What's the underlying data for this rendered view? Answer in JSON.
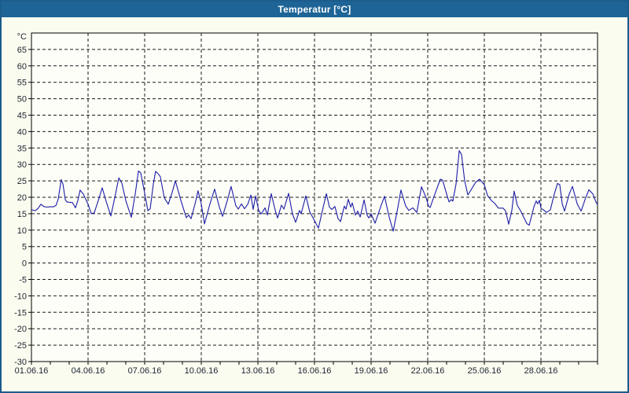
{
  "window": {
    "title": "Temperatur [°C]"
  },
  "colors": {
    "titlebar": "#1e6496",
    "window_border": "#1b5c8c",
    "background": "#fbfcf0",
    "plot_background": "#fdfef8",
    "grid": "#1a1a1a",
    "axis": "#000000",
    "line": "#1c1ca8",
    "label_text": "#1c2430"
  },
  "chart_data": {
    "type": "line",
    "title": "Temperatur [°C]",
    "xlabel": "",
    "ylabel": "°C",
    "grid": "dashed",
    "legend": "none",
    "ylim": [
      -30,
      70
    ],
    "xlim_days": [
      0,
      30
    ],
    "y_unit_label": {
      "v": 70,
      "label": "°C"
    },
    "y_ticks": [
      {
        "v": 65,
        "label": "65"
      },
      {
        "v": 60,
        "label": "60"
      },
      {
        "v": 55,
        "label": "55"
      },
      {
        "v": 50,
        "label": "50"
      },
      {
        "v": 45,
        "label": "45"
      },
      {
        "v": 40,
        "label": "40"
      },
      {
        "v": 35,
        "label": "35"
      },
      {
        "v": 30,
        "label": "30"
      },
      {
        "v": 25,
        "label": "25"
      },
      {
        "v": 20,
        "label": "20"
      },
      {
        "v": 15,
        "label": "15"
      },
      {
        "v": 10,
        "label": "10"
      },
      {
        "v": 5,
        "label": "5"
      },
      {
        "v": 0,
        "label": "0"
      },
      {
        "v": -5,
        "label": "-5"
      },
      {
        "v": -10,
        "label": "-10"
      },
      {
        "v": -15,
        "label": "-15"
      },
      {
        "v": -20,
        "label": "-20"
      },
      {
        "v": -25,
        "label": "-25"
      },
      {
        "v": -30,
        "label": "-30"
      }
    ],
    "x_ticks": [
      {
        "day": 0,
        "label": "01.06.16"
      },
      {
        "day": 3,
        "label": "04.06.16"
      },
      {
        "day": 6,
        "label": "07.06.16"
      },
      {
        "day": 9,
        "label": "10.06.16"
      },
      {
        "day": 12,
        "label": "13.06.16"
      },
      {
        "day": 15,
        "label": "16.06.16"
      },
      {
        "day": 18,
        "label": "19.06.16"
      },
      {
        "day": 21,
        "label": "22.06.16"
      },
      {
        "day": 24,
        "label": "25.06.16"
      },
      {
        "day": 27,
        "label": "28.06.16"
      }
    ],
    "x_minor_tick_every_days": 1,
    "x_major_grid_every_days": 3,
    "y_grid_every": 5,
    "series": [
      {
        "name": "Temperatur",
        "unit": "°C",
        "x_unit": "days since 01.06.16 00:00",
        "points": [
          [
            0,
            16.2
          ],
          [
            0.2,
            15.9
          ],
          [
            0.35,
            16.6
          ],
          [
            0.5,
            17.9
          ],
          [
            0.65,
            17.2
          ],
          [
            0.8,
            17.0
          ],
          [
            1.0,
            17.1
          ],
          [
            1.17,
            17.1
          ],
          [
            1.3,
            17.5
          ],
          [
            1.42,
            19.5
          ],
          [
            1.58,
            25.4
          ],
          [
            1.67,
            24.0
          ],
          [
            1.79,
            19.3
          ],
          [
            1.88,
            18.6
          ],
          [
            2.0,
            18.5
          ],
          [
            2.17,
            18.4
          ],
          [
            2.33,
            16.8
          ],
          [
            2.46,
            19.0
          ],
          [
            2.58,
            22.2
          ],
          [
            2.67,
            21.5
          ],
          [
            2.75,
            21.0
          ],
          [
            2.92,
            18.8
          ],
          [
            3.0,
            17.9
          ],
          [
            3.17,
            15.0
          ],
          [
            3.33,
            15.3
          ],
          [
            3.54,
            19.0
          ],
          [
            3.75,
            22.9
          ],
          [
            3.92,
            19.5
          ],
          [
            4.0,
            18.0
          ],
          [
            4.21,
            14.3
          ],
          [
            4.42,
            20.0
          ],
          [
            4.63,
            25.9
          ],
          [
            4.79,
            24.3
          ],
          [
            5.0,
            19.0
          ],
          [
            5.29,
            13.9
          ],
          [
            5.5,
            21.0
          ],
          [
            5.67,
            28.0
          ],
          [
            5.79,
            27.4
          ],
          [
            6.0,
            21.3
          ],
          [
            6.17,
            15.9
          ],
          [
            6.29,
            16.5
          ],
          [
            6.46,
            24.0
          ],
          [
            6.58,
            27.9
          ],
          [
            6.71,
            27.2
          ],
          [
            6.83,
            26.3
          ],
          [
            7.04,
            19.8
          ],
          [
            7.25,
            17.9
          ],
          [
            7.46,
            21.5
          ],
          [
            7.63,
            25.0
          ],
          [
            7.92,
            19.0
          ],
          [
            8.21,
            13.8
          ],
          [
            8.33,
            14.6
          ],
          [
            8.46,
            13.5
          ],
          [
            8.67,
            18.0
          ],
          [
            8.83,
            22.0
          ],
          [
            9.0,
            18.0
          ],
          [
            9.17,
            11.9
          ],
          [
            9.46,
            18.0
          ],
          [
            9.71,
            22.5
          ],
          [
            9.96,
            17.0
          ],
          [
            10.13,
            14.2
          ],
          [
            10.38,
            19.0
          ],
          [
            10.58,
            23.3
          ],
          [
            10.83,
            17.5
          ],
          [
            10.96,
            16.4
          ],
          [
            11.13,
            18.0
          ],
          [
            11.29,
            16.5
          ],
          [
            11.46,
            17.8
          ],
          [
            11.63,
            20.7
          ],
          [
            11.75,
            16.3
          ],
          [
            11.88,
            20.4
          ],
          [
            12.04,
            16.0
          ],
          [
            12.17,
            14.9
          ],
          [
            12.38,
            16.8
          ],
          [
            12.5,
            14.6
          ],
          [
            12.71,
            21.1
          ],
          [
            12.92,
            16.0
          ],
          [
            13.04,
            13.7
          ],
          [
            13.25,
            17.6
          ],
          [
            13.38,
            16.4
          ],
          [
            13.63,
            21.2
          ],
          [
            13.83,
            15.0
          ],
          [
            14.0,
            12.4
          ],
          [
            14.21,
            16.0
          ],
          [
            14.29,
            15.0
          ],
          [
            14.54,
            20.4
          ],
          [
            14.75,
            15.5
          ],
          [
            14.88,
            14.2
          ],
          [
            15.21,
            10.6
          ],
          [
            15.42,
            16.0
          ],
          [
            15.63,
            21.1
          ],
          [
            15.79,
            17.0
          ],
          [
            15.92,
            16.3
          ],
          [
            16.08,
            17.2
          ],
          [
            16.25,
            13.5
          ],
          [
            16.38,
            12.6
          ],
          [
            16.58,
            17.3
          ],
          [
            16.67,
            16.4
          ],
          [
            16.79,
            19.4
          ],
          [
            16.92,
            17.0
          ],
          [
            17.0,
            18.3
          ],
          [
            17.17,
            14.6
          ],
          [
            17.29,
            15.8
          ],
          [
            17.42,
            14.0
          ],
          [
            17.63,
            19.2
          ],
          [
            17.79,
            14.5
          ],
          [
            17.88,
            13.7
          ],
          [
            18.0,
            15.0
          ],
          [
            18.21,
            12.1
          ],
          [
            18.5,
            17.0
          ],
          [
            18.71,
            20.3
          ],
          [
            18.96,
            14.0
          ],
          [
            19.17,
            9.7
          ],
          [
            19.42,
            17.0
          ],
          [
            19.58,
            22.2
          ],
          [
            19.83,
            17.4
          ],
          [
            20.0,
            16.0
          ],
          [
            20.21,
            16.8
          ],
          [
            20.42,
            15.4
          ],
          [
            20.67,
            23.2
          ],
          [
            20.92,
            19.8
          ],
          [
            21.04,
            17.3
          ],
          [
            21.13,
            16.9
          ],
          [
            21.38,
            21.0
          ],
          [
            21.67,
            25.5
          ],
          [
            21.79,
            25.2
          ],
          [
            22.0,
            21.0
          ],
          [
            22.13,
            18.6
          ],
          [
            22.25,
            19.3
          ],
          [
            22.33,
            18.8
          ],
          [
            22.5,
            24.0
          ],
          [
            22.67,
            34.2
          ],
          [
            22.79,
            33.0
          ],
          [
            22.96,
            25.0
          ],
          [
            23.13,
            20.7
          ],
          [
            23.54,
            24.6
          ],
          [
            23.75,
            25.5
          ],
          [
            24.0,
            23.8
          ],
          [
            24.17,
            20.5
          ],
          [
            24.38,
            19.0
          ],
          [
            24.54,
            18.2
          ],
          [
            24.75,
            16.7
          ],
          [
            25.0,
            16.7
          ],
          [
            25.13,
            15.8
          ],
          [
            25.29,
            11.8
          ],
          [
            25.46,
            16.0
          ],
          [
            25.58,
            21.9
          ],
          [
            25.75,
            17.5
          ],
          [
            25.92,
            15.9
          ],
          [
            26.25,
            12.0
          ],
          [
            26.38,
            11.5
          ],
          [
            26.63,
            17.1
          ],
          [
            26.75,
            18.9
          ],
          [
            26.83,
            18.0
          ],
          [
            26.92,
            19.1
          ],
          [
            27.0,
            16.7
          ],
          [
            27.17,
            16.0
          ],
          [
            27.29,
            15.4
          ],
          [
            27.5,
            16.2
          ],
          [
            27.71,
            21.0
          ],
          [
            27.88,
            24.2
          ],
          [
            28.0,
            23.8
          ],
          [
            28.13,
            18.0
          ],
          [
            28.25,
            15.8
          ],
          [
            28.5,
            21.0
          ],
          [
            28.67,
            23.3
          ],
          [
            28.92,
            18.0
          ],
          [
            29.13,
            15.8
          ],
          [
            29.38,
            20.0
          ],
          [
            29.54,
            22.3
          ],
          [
            29.75,
            21.0
          ],
          [
            29.92,
            18.5
          ],
          [
            30.0,
            17.8
          ]
        ]
      }
    ]
  }
}
